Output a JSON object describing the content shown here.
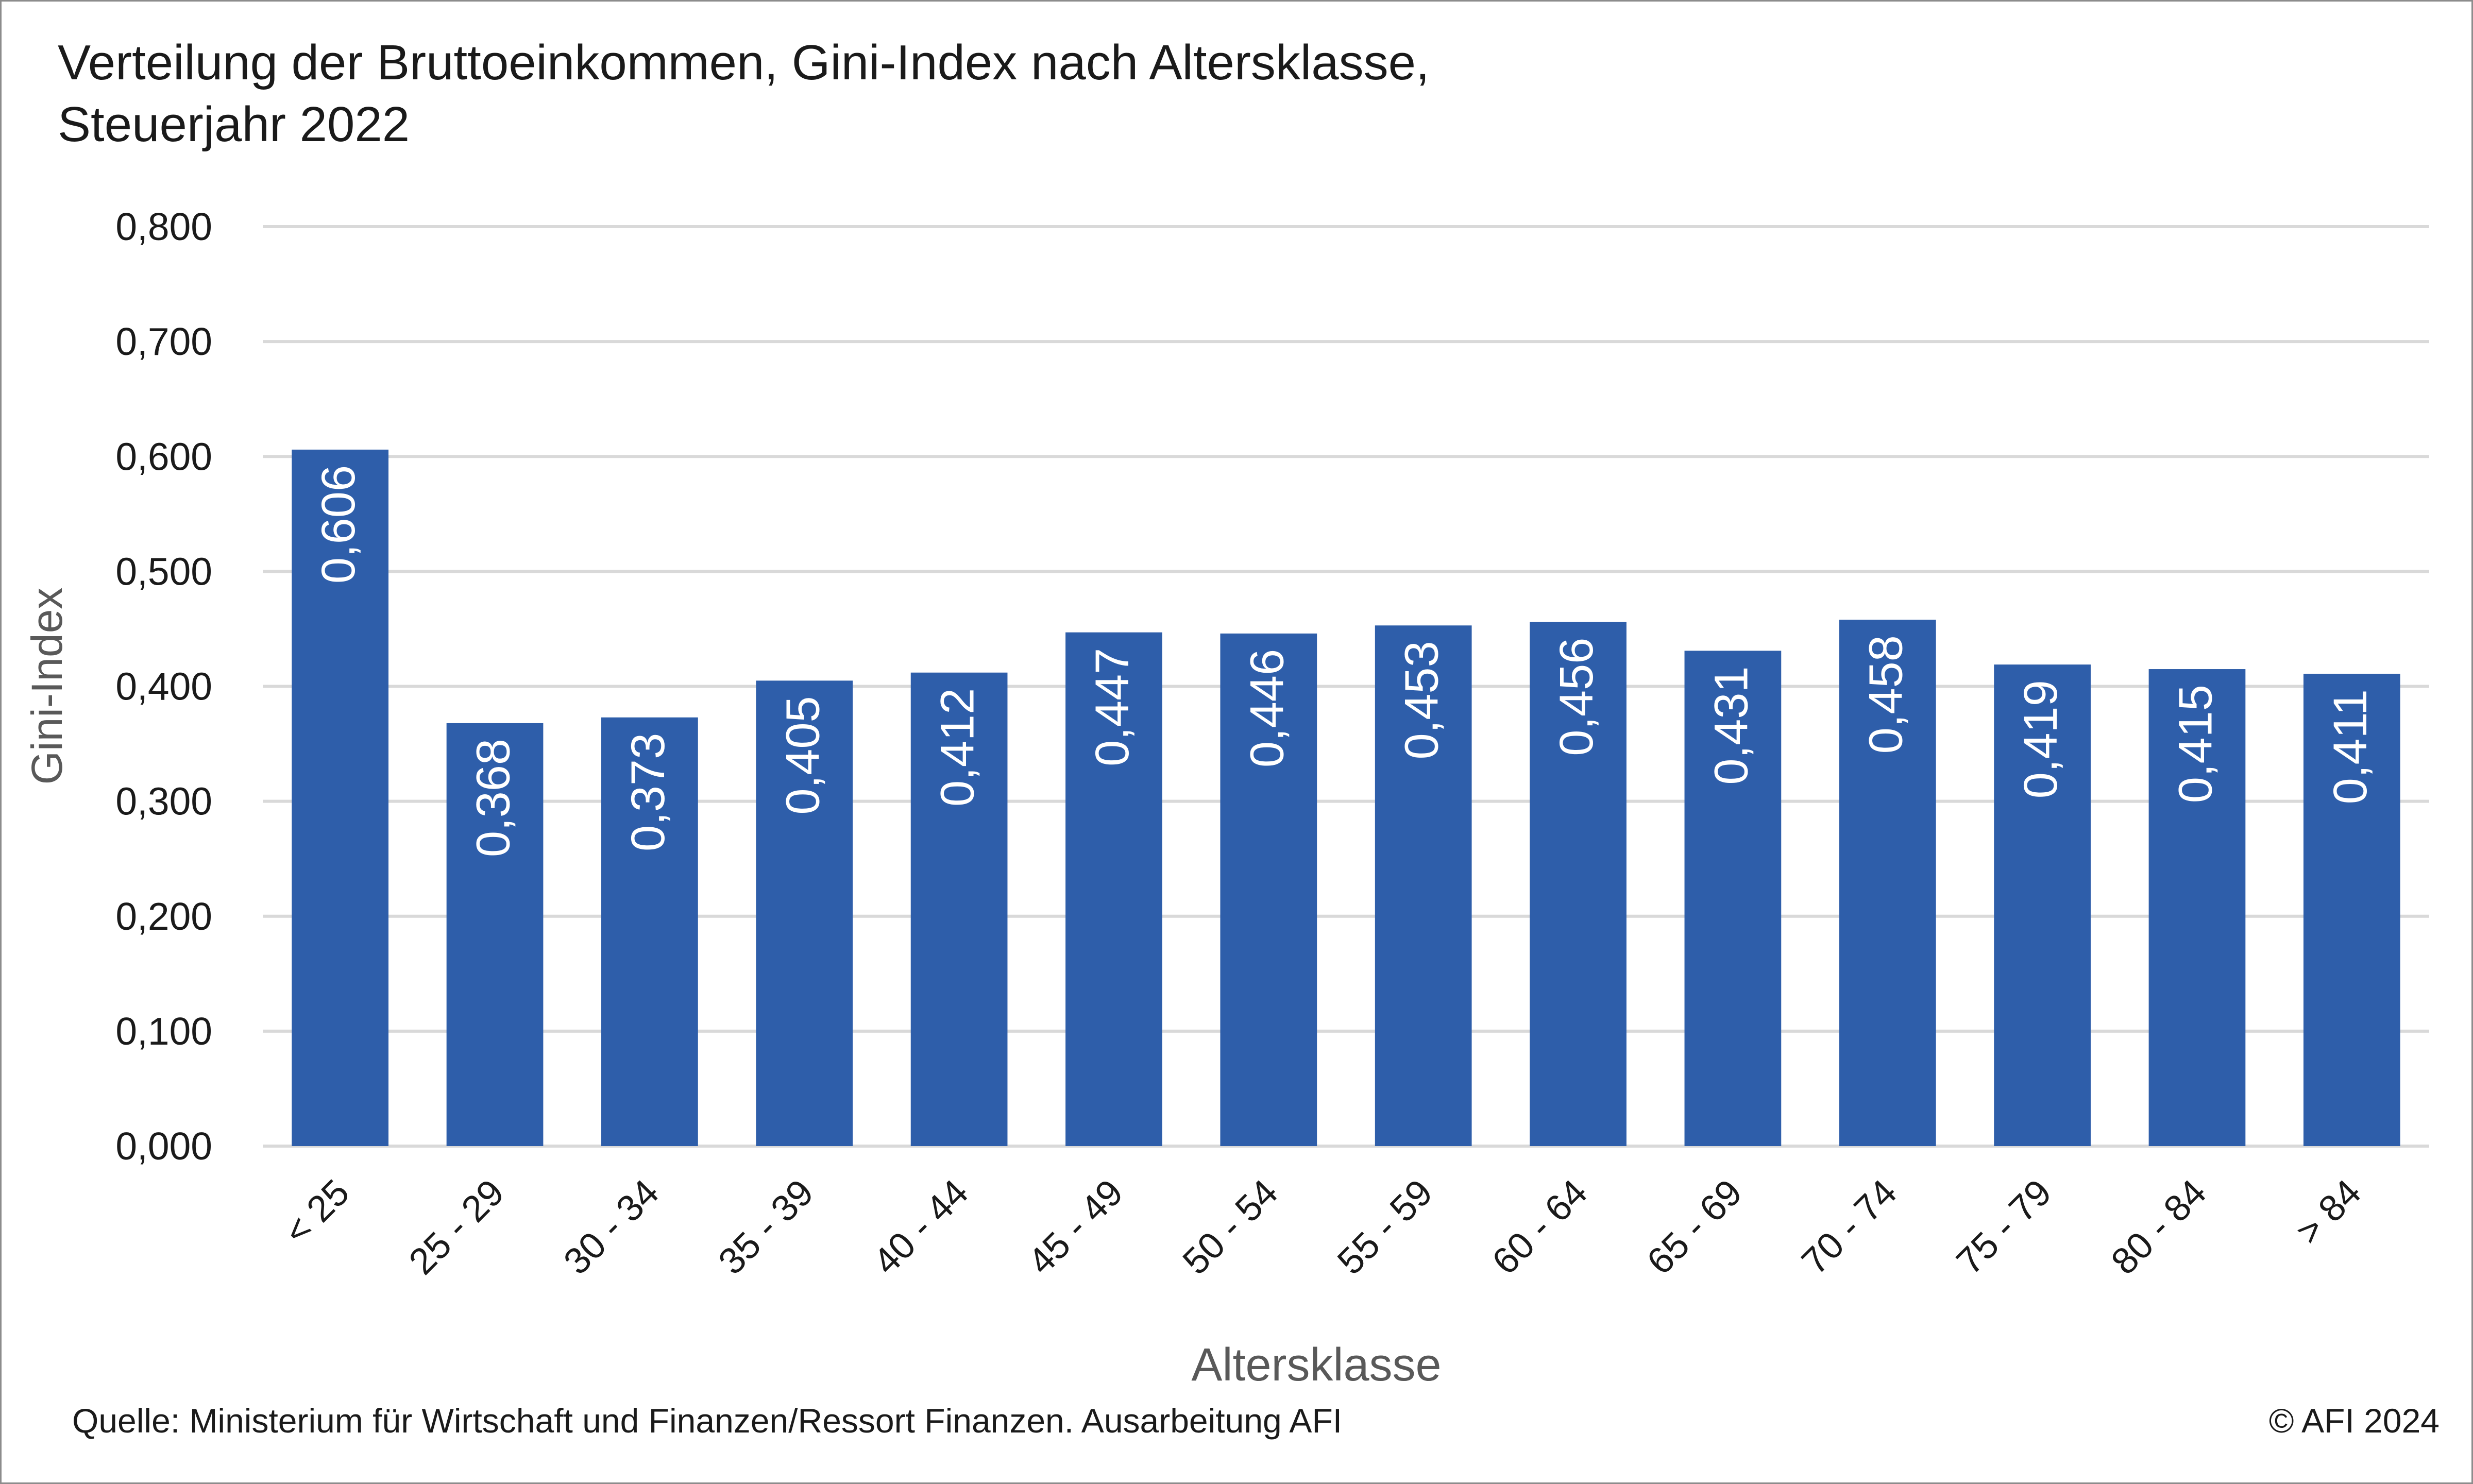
{
  "title_line1": "Verteilung der Bruttoeinkommen, Gini-Index nach Altersklasse,",
  "title_line2": "Steuerjahr 2022",
  "source": "Quelle: Ministerium für Wirtschaft und Finanzen/Ressort Finanzen. Ausarbeitung AFI",
  "copyright": "© AFI 2024",
  "colors": {
    "bar": "#2e5eaa",
    "grid": "#d9d9d9",
    "axis_text": "#1a1a1a",
    "axis_title": "#595959",
    "label": "#ffffff"
  },
  "chart_data": {
    "type": "bar",
    "xlabel": "Altersklasse",
    "ylabel": "Gini-Index",
    "ylim": [
      0,
      0.8
    ],
    "yticks": [
      "0,000",
      "0,100",
      "0,200",
      "0,300",
      "0,400",
      "0,500",
      "0,600",
      "0,700",
      "0,800"
    ],
    "categories": [
      "< 25",
      "25 - 29",
      "30 - 34",
      "35 - 39",
      "40 - 44",
      "45 - 49",
      "50 - 54",
      "55 - 59",
      "60 - 64",
      "65 - 69",
      "70 - 74",
      "75 - 79",
      "80 - 84",
      "> 84"
    ],
    "values": [
      0.606,
      0.368,
      0.373,
      0.405,
      0.412,
      0.447,
      0.446,
      0.453,
      0.456,
      0.431,
      0.458,
      0.419,
      0.415,
      0.411
    ],
    "value_labels": [
      "0,606",
      "0,368",
      "0,373",
      "0,405",
      "0,412",
      "0,447",
      "0,446",
      "0,453",
      "0,456",
      "0,431",
      "0,458",
      "0,419",
      "0,415",
      "0,411"
    ],
    "grid": true,
    "legend": "none"
  }
}
